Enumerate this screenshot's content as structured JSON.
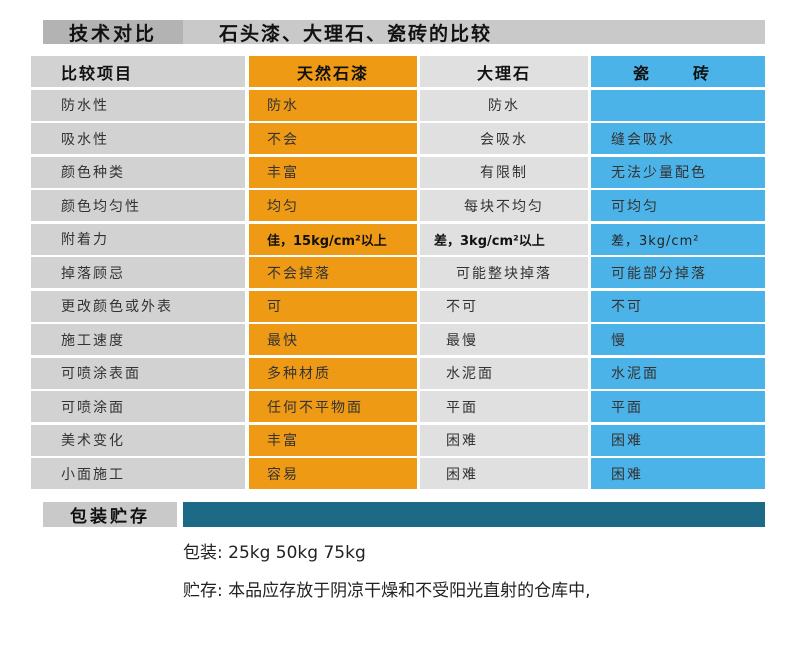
{
  "title": {
    "tag": "技术对比",
    "main": "石头漆、大理石、瓷砖的比较"
  },
  "table": {
    "headers": [
      "比较项目",
      "天然石漆",
      "大理石",
      "瓷　砖"
    ],
    "rows": [
      [
        "防水性",
        "防水",
        "防水",
        ""
      ],
      [
        "吸水性",
        "不会",
        "会吸水",
        "缝会吸水"
      ],
      [
        "颜色种类",
        "丰富",
        "有限制",
        "无法少量配色"
      ],
      [
        "颜色均匀性",
        "均匀",
        "每块不均匀",
        "可均匀"
      ],
      [
        "附着力",
        "佳，15kg/cm²以上",
        "差，3kg/cm²以上",
        "差，3kg/cm²"
      ],
      [
        "掉落顾忌",
        "不会掉落",
        "可能整块掉落",
        "可能部分掉落"
      ],
      [
        "更改颜色或外表",
        "可",
        "不可",
        "不可"
      ],
      [
        "施工速度",
        "最快",
        "最慢",
        "慢"
      ],
      [
        "可喷涂表面",
        "多种材质",
        "水泥面",
        "水泥面"
      ],
      [
        "可喷涂面",
        "任何不平物面",
        "平面",
        "平面"
      ],
      [
        "美术变化",
        "丰富",
        "困难",
        "困难"
      ],
      [
        "小面施工",
        "容易",
        "困难",
        "困难"
      ]
    ]
  },
  "packaging": {
    "section_label": "包装贮存",
    "pack_line": "包装:  25kg   50kg   75kg",
    "store_line": "贮存:  本品应存放于阴凉干燥和不受阳光直射的仓库中,"
  },
  "colors": {
    "stone_paint_column": "#ef9a14",
    "marble_column": "#e0e0e0",
    "tile_column": "#4cb3e8",
    "label_column": "#d2d2d2",
    "section_bar": "#1d6a86"
  }
}
